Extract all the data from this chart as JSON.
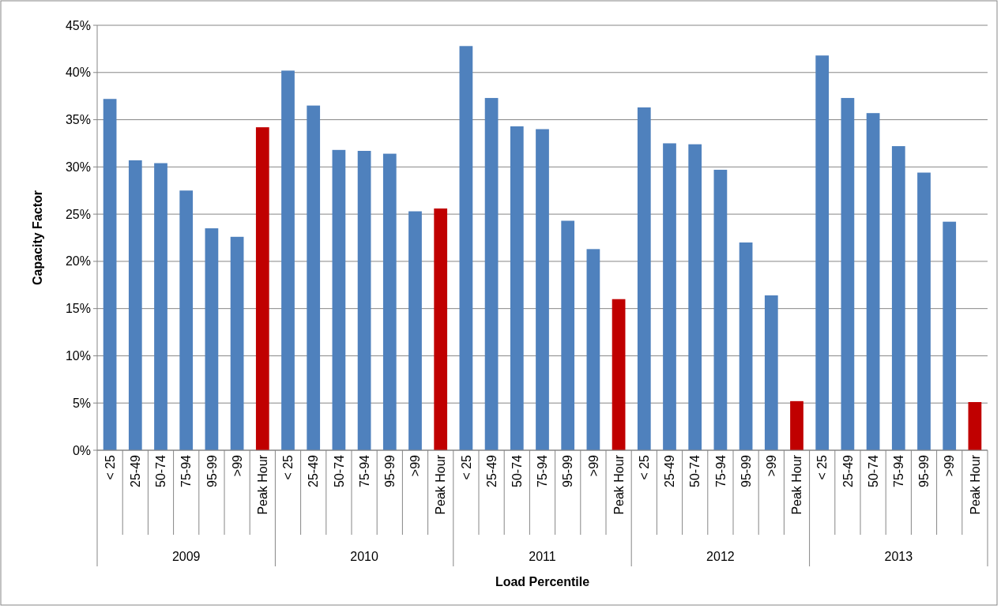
{
  "chart_data": {
    "type": "bar",
    "xlabel": "Load Percentile",
    "ylabel": "Capacity Factor",
    "categories": [
      "< 25",
      "25-49",
      "50-74",
      "75-94",
      "95-99",
      ">99",
      "Peak Hour",
      "< 25",
      "25-49",
      "50-74",
      "75-94",
      "95-99",
      ">99",
      "Peak Hour",
      "< 25",
      "25-49",
      "50-74",
      "75-94",
      "95-99",
      ">99",
      "Peak Hour",
      "< 25",
      "25-49",
      "50-74",
      "75-94",
      "95-99",
      ">99",
      "Peak Hour",
      "< 25",
      "25-49",
      "50-74",
      "75-94",
      "95-99",
      ">99",
      "Peak Hour"
    ],
    "values": [
      37.2,
      30.7,
      30.4,
      27.5,
      23.5,
      22.6,
      34.2,
      40.2,
      36.5,
      31.8,
      31.7,
      31.4,
      25.3,
      25.6,
      42.8,
      37.3,
      34.3,
      34.0,
      24.3,
      21.3,
      16.0,
      36.3,
      32.5,
      32.4,
      29.7,
      22.0,
      16.4,
      5.2,
      41.8,
      37.3,
      35.7,
      32.2,
      29.4,
      24.2,
      5.1
    ],
    "colors": [
      "#4f81bd",
      "#4f81bd",
      "#4f81bd",
      "#4f81bd",
      "#4f81bd",
      "#4f81bd",
      "#c00000",
      "#4f81bd",
      "#4f81bd",
      "#4f81bd",
      "#4f81bd",
      "#4f81bd",
      "#4f81bd",
      "#c00000",
      "#4f81bd",
      "#4f81bd",
      "#4f81bd",
      "#4f81bd",
      "#4f81bd",
      "#4f81bd",
      "#c00000",
      "#4f81bd",
      "#4f81bd",
      "#4f81bd",
      "#4f81bd",
      "#4f81bd",
      "#4f81bd",
      "#c00000",
      "#4f81bd",
      "#4f81bd",
      "#4f81bd",
      "#4f81bd",
      "#4f81bd",
      "#4f81bd",
      "#c00000"
    ],
    "annotations": [
      "2009",
      "2010",
      "2011",
      "2012",
      "2013"
    ],
    "ylim": [
      0,
      45
    ],
    "yticks": [
      {
        "value": 0,
        "label": "0%"
      },
      {
        "value": 5,
        "label": "5%"
      },
      {
        "value": 10,
        "label": "10%"
      },
      {
        "value": 15,
        "label": "15%"
      },
      {
        "value": 20,
        "label": "20%"
      },
      {
        "value": 25,
        "label": "25%"
      },
      {
        "value": 30,
        "label": "30%"
      },
      {
        "value": 35,
        "label": "35%"
      },
      {
        "value": 40,
        "label": "40%"
      },
      {
        "value": 45,
        "label": "45%"
      }
    ],
    "grid": "y"
  }
}
